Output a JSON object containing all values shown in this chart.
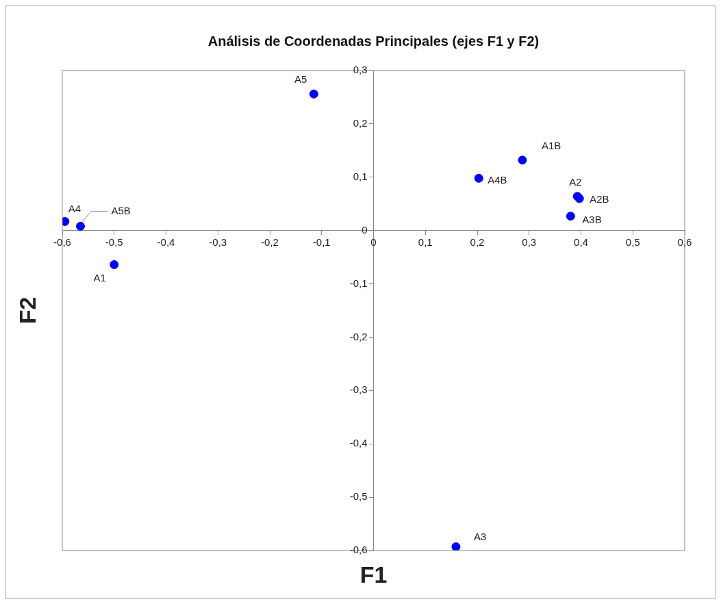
{
  "chart_data": {
    "type": "scatter",
    "title": "Análisis de Coordenadas Principales (ejes F1 y F2)",
    "xlabel": "F1",
    "ylabel": "F2",
    "x": [
      -0.115,
      0.287,
      0.203,
      0.393,
      0.397,
      0.38,
      -0.595,
      -0.565,
      -0.5,
      0.159
    ],
    "values": [
      0.256,
      0.132,
      0.098,
      0.064,
      0.06,
      0.027,
      0.017,
      0.008,
      -0.064,
      -0.593
    ],
    "color": "#0000ff",
    "marker": "circle",
    "grid": false,
    "legend": false,
    "xlim": [
      -0.6,
      0.6
    ],
    "ylim": [
      -0.6,
      0.3
    ],
    "xticks": [
      {
        "value": -0.6,
        "label": "-0,6"
      },
      {
        "value": -0.5,
        "label": "-0,5"
      },
      {
        "value": -0.4,
        "label": "-0,4"
      },
      {
        "value": -0.3,
        "label": "-0,3"
      },
      {
        "value": -0.2,
        "label": "-0,2"
      },
      {
        "value": -0.1,
        "label": "-0,1"
      },
      0,
      {
        "value": 0.1,
        "label": "0,1"
      },
      {
        "value": 0.2,
        "label": "0,2"
      },
      {
        "value": 0.3,
        "label": "0,3"
      },
      {
        "value": 0.4,
        "label": "0,4"
      },
      {
        "value": 0.5,
        "label": "0,5"
      },
      {
        "value": 0.6,
        "label": "0,6"
      }
    ],
    "yticks": [
      {
        "value": -0.6,
        "label": "-0,6"
      },
      {
        "value": -0.5,
        "label": "-0,5"
      },
      {
        "value": -0.4,
        "label": "-0,4"
      },
      {
        "value": -0.3,
        "label": "-0,3"
      },
      {
        "value": -0.2,
        "label": "-0,2"
      },
      {
        "value": -0.1,
        "label": "-0,1"
      },
      0,
      {
        "value": 0.1,
        "label": "0,1"
      },
      {
        "value": 0.2,
        "label": "0,2"
      },
      {
        "value": 0.3,
        "label": "0,3"
      }
    ],
    "annotations": [
      {
        "text": "A5",
        "x": -0.115,
        "y": 0.256
      },
      {
        "text": "A1B",
        "x": 0.287,
        "y": 0.132
      },
      {
        "text": "A4B",
        "x": 0.203,
        "y": 0.098
      },
      {
        "text": "A2",
        "x": 0.393,
        "y": 0.064
      },
      {
        "text": "A2B",
        "x": 0.397,
        "y": 0.06
      },
      {
        "text": "A3B",
        "x": 0.38,
        "y": 0.027
      },
      {
        "text": "A4",
        "x": -0.595,
        "y": 0.017
      },
      {
        "text": "A5B",
        "x": -0.565,
        "y": 0.008
      },
      {
        "text": "A1",
        "x": -0.5,
        "y": -0.064
      },
      {
        "text": "A3",
        "x": 0.159,
        "y": -0.593
      }
    ]
  }
}
